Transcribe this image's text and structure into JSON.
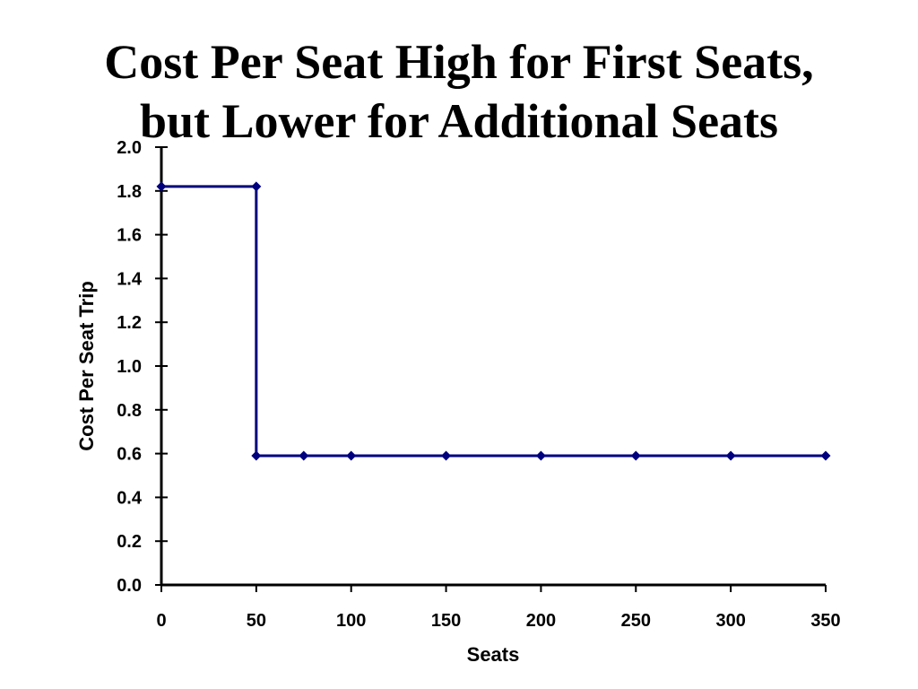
{
  "slide": {
    "title_lines": [
      "Cost Per Seat High for First Seats,",
      "but Lower for Additional Seats"
    ]
  },
  "chart_data": {
    "type": "line",
    "title": "",
    "xlabel": "Seats",
    "ylabel": "Cost Per Seat Trip",
    "xlim": [
      0,
      350
    ],
    "ylim": [
      0,
      2.0
    ],
    "x_ticks": [
      "0",
      "50",
      "100",
      "150",
      "200",
      "250",
      "300",
      "350"
    ],
    "y_ticks": [
      "0.0",
      "0.2",
      "0.4",
      "0.6",
      "0.8",
      "1.0",
      "1.2",
      "1.4",
      "1.6",
      "1.8",
      "2.0"
    ],
    "grid": false,
    "legend": "none",
    "series": [
      {
        "color": "#00007f",
        "marker": "diamond",
        "points": [
          {
            "x": 0,
            "y": 1.82
          },
          {
            "x": 50,
            "y": 1.82
          },
          {
            "x": 50,
            "y": 0.59
          },
          {
            "x": 75,
            "y": 0.59
          },
          {
            "x": 100,
            "y": 0.59
          },
          {
            "x": 150,
            "y": 0.59
          },
          {
            "x": 200,
            "y": 0.59
          },
          {
            "x": 250,
            "y": 0.59
          },
          {
            "x": 300,
            "y": 0.59
          },
          {
            "x": 350,
            "y": 0.59
          }
        ]
      }
    ]
  }
}
